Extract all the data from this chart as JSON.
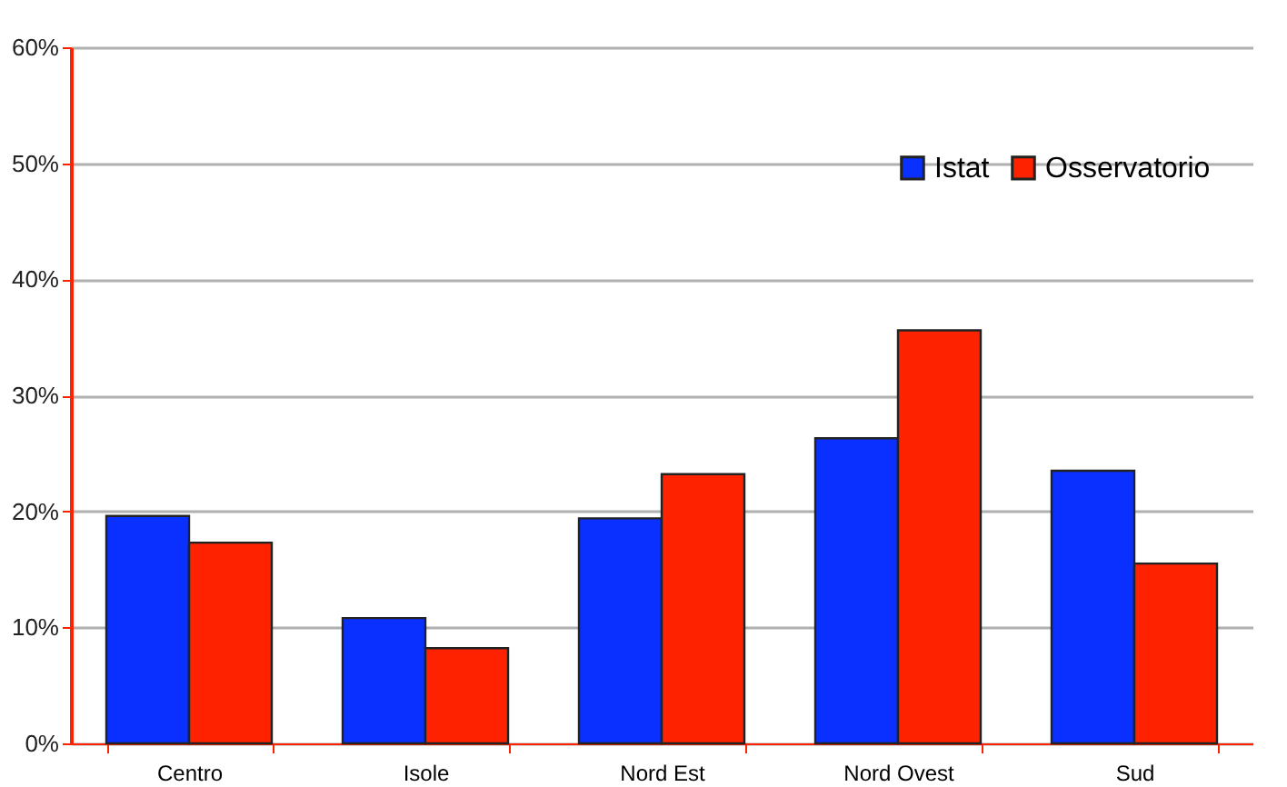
{
  "chart_data": {
    "type": "bar",
    "categories": [
      "Centro",
      "Isole",
      "Nord Est",
      "Nord Ovest",
      "Sud"
    ],
    "series": [
      {
        "name": "Istat",
        "color": "#0a30ff",
        "values": [
          19.6,
          10.8,
          19.4,
          26.3,
          23.5
        ]
      },
      {
        "name": "Osservatorio",
        "color": "#ff2200",
        "values": [
          17.3,
          8.2,
          23.2,
          35.6,
          15.5
        ]
      }
    ],
    "ylim": [
      0,
      60
    ],
    "yticks": [
      {
        "value": 0,
        "label": "0%"
      },
      {
        "value": 10,
        "label": "10%"
      },
      {
        "value": 20,
        "label": "20%"
      },
      {
        "value": 30,
        "label": "30%"
      },
      {
        "value": 40,
        "label": "40%"
      },
      {
        "value": 50,
        "label": "50%"
      },
      {
        "value": 60,
        "label": "60%"
      }
    ],
    "grid": "y",
    "legend": "top right"
  }
}
